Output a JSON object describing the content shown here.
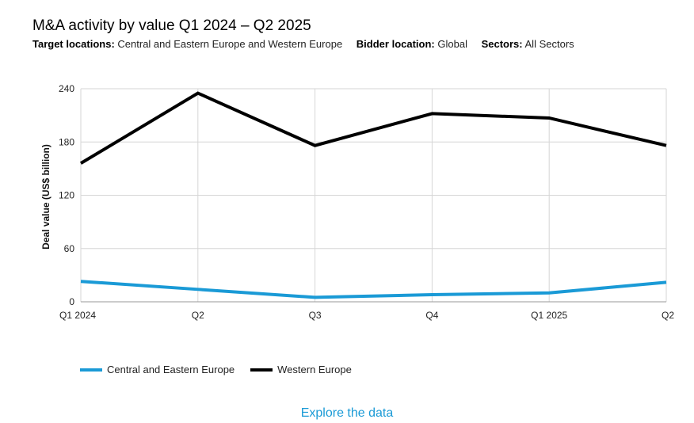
{
  "header": {
    "title": "M&A activity by value Q1 2024 – Q2 2025",
    "filters": [
      {
        "label": "Target locations:",
        "value": "Central and Eastern Europe and Western Europe"
      },
      {
        "label": "Bidder location:",
        "value": "Global"
      },
      {
        "label": "Sectors:",
        "value": "All Sectors"
      }
    ]
  },
  "chart_data": {
    "type": "line",
    "title": "M&A activity by value Q1 2024 – Q2 2025",
    "xlabel": "",
    "ylabel": "Deal value (US$ billion)",
    "categories": [
      "Q1 2024",
      "Q2",
      "Q3",
      "Q4",
      "Q1 2025",
      "Q2"
    ],
    "ylim": [
      0,
      240
    ],
    "yticks": [
      0,
      60,
      120,
      180,
      240
    ],
    "grid": true,
    "legend_position": "bottom-left",
    "series": [
      {
        "name": "Central and Eastern Europe",
        "color": "#1a9ad6",
        "values": [
          23,
          14,
          5,
          8,
          10,
          22
        ]
      },
      {
        "name": "Western Europe",
        "color": "#000000",
        "values": [
          156,
          235,
          176,
          212,
          207,
          176
        ]
      }
    ]
  },
  "footer": {
    "link_label": "Explore the data",
    "link_color": "#1a9ad6"
  }
}
